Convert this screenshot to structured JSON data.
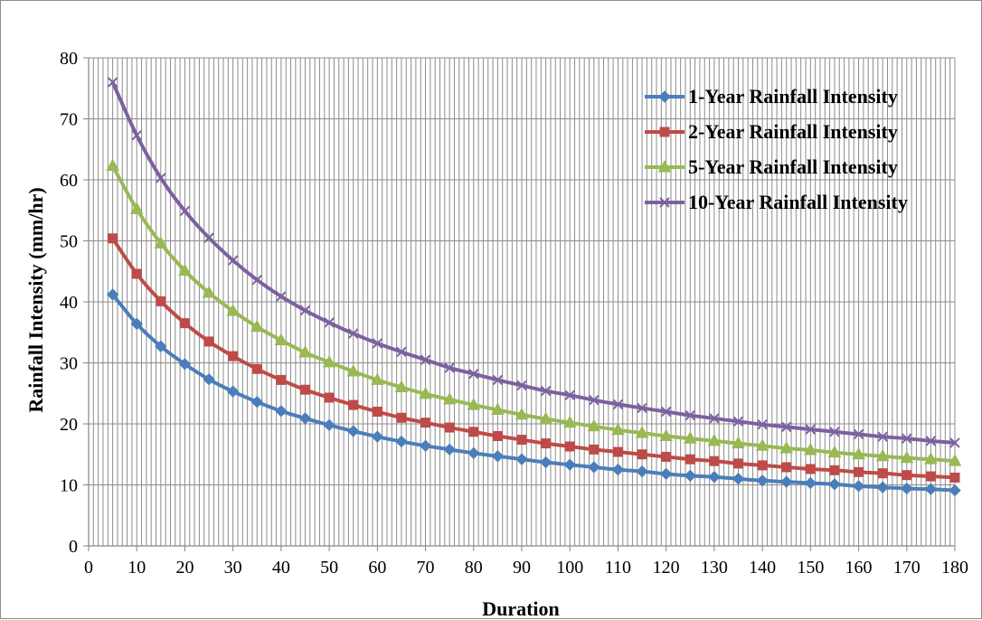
{
  "chart_data": {
    "type": "line",
    "xlabel": "Duration",
    "ylabel": "Rainfall Intensity (mm/hr)",
    "xlim": [
      0,
      180
    ],
    "ylim": [
      0,
      80
    ],
    "x_ticks": [
      0,
      10,
      20,
      30,
      40,
      50,
      60,
      70,
      80,
      90,
      100,
      110,
      120,
      130,
      140,
      150,
      160,
      170,
      180
    ],
    "y_ticks": [
      0,
      10,
      20,
      30,
      40,
      50,
      60,
      70,
      80
    ],
    "grid": true,
    "legend_position": "top-right",
    "x": [
      5,
      10,
      15,
      20,
      25,
      30,
      35,
      40,
      45,
      50,
      55,
      60,
      65,
      70,
      75,
      80,
      85,
      90,
      95,
      100,
      105,
      110,
      115,
      120,
      125,
      130,
      135,
      140,
      145,
      150,
      155,
      160,
      165,
      170,
      175,
      180
    ],
    "series": [
      {
        "name": "1-Year Rainfall Intensity",
        "color": "#4a7ebb",
        "marker": "diamond",
        "values": [
          41.2,
          36.4,
          32.7,
          29.8,
          27.3,
          25.3,
          23.6,
          22.1,
          20.9,
          19.8,
          18.8,
          17.9,
          17.1,
          16.4,
          15.8,
          15.2,
          14.7,
          14.2,
          13.7,
          13.3,
          12.9,
          12.5,
          12.2,
          11.8,
          11.5,
          11.3,
          11.0,
          10.7,
          10.5,
          10.3,
          10.1,
          9.8,
          9.6,
          9.4,
          9.3,
          9.1
        ]
      },
      {
        "name": "2-Year Rainfall Intensity",
        "color": "#be4b48",
        "marker": "square",
        "values": [
          50.4,
          44.6,
          40.1,
          36.5,
          33.5,
          31.1,
          29.0,
          27.2,
          25.6,
          24.3,
          23.1,
          22.0,
          21.0,
          20.2,
          19.4,
          18.7,
          18.0,
          17.4,
          16.8,
          16.3,
          15.8,
          15.4,
          15.0,
          14.6,
          14.2,
          13.9,
          13.5,
          13.2,
          12.9,
          12.6,
          12.4,
          12.1,
          11.9,
          11.6,
          11.4,
          11.2
        ]
      },
      {
        "name": "5-Year Rainfall Intensity",
        "color": "#98b954",
        "marker": "triangle",
        "values": [
          62.3,
          55.2,
          49.6,
          45.1,
          41.5,
          38.5,
          35.9,
          33.7,
          31.7,
          30.1,
          28.6,
          27.2,
          26.0,
          24.9,
          24.0,
          23.1,
          22.3,
          21.5,
          20.8,
          20.2,
          19.6,
          19.0,
          18.5,
          18.0,
          17.6,
          17.2,
          16.8,
          16.4,
          16.0,
          15.7,
          15.3,
          15.0,
          14.7,
          14.4,
          14.2,
          13.9
        ]
      },
      {
        "name": "10-Year Rainfall Intensity",
        "color": "#7d60a0",
        "marker": "x",
        "values": [
          76.0,
          67.3,
          60.3,
          54.9,
          50.5,
          46.8,
          43.6,
          40.9,
          38.6,
          36.6,
          34.8,
          33.2,
          31.8,
          30.5,
          29.2,
          28.2,
          27.2,
          26.3,
          25.4,
          24.7,
          23.9,
          23.2,
          22.6,
          22.0,
          21.4,
          20.9,
          20.4,
          19.9,
          19.5,
          19.1,
          18.7,
          18.3,
          17.9,
          17.6,
          17.2,
          16.9
        ]
      }
    ]
  }
}
